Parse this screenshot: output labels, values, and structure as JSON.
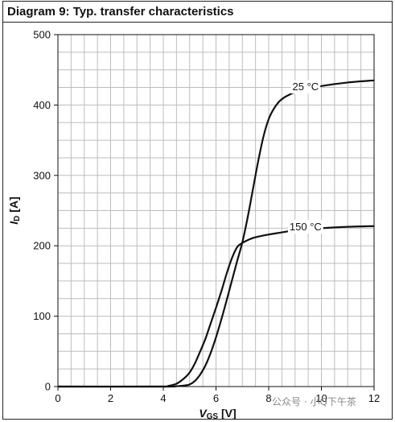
{
  "title": "Diagram 9: Typ. transfer characteristics",
  "watermark": "公众号 · 小Q下午茶",
  "chart_data": {
    "type": "line",
    "title": "Diagram 9: Typ. transfer characteristics",
    "xlabel": {
      "main": "V",
      "sub": "GS",
      "unit": " [V]"
    },
    "ylabel": {
      "main": "I",
      "sub": "D",
      "unit": " [A]"
    },
    "xlim": [
      0,
      12
    ],
    "ylim": [
      0,
      500
    ],
    "x_ticks": [
      0,
      2,
      4,
      6,
      8,
      10,
      12
    ],
    "y_ticks": [
      0,
      100,
      200,
      300,
      400,
      500
    ],
    "x_minor_step": 0.5,
    "y_minor_step": 25,
    "grid": true,
    "colors": {
      "line": "#111111",
      "grid": "#bdbdbd",
      "axis": "#111111"
    },
    "series": [
      {
        "name": "25 °C",
        "label_at": {
          "x": 9.4,
          "y": 426
        },
        "x": [
          0,
          4.0,
          4.5,
          4.8,
          5.0,
          5.2,
          5.4,
          5.6,
          5.8,
          6.0,
          6.2,
          6.4,
          6.6,
          6.8,
          7.0,
          7.2,
          7.4,
          7.6,
          7.8,
          8.0,
          8.2,
          8.4,
          8.6,
          8.8,
          9.0,
          9.5,
          10,
          11,
          12
        ],
        "values": [
          0,
          0,
          0.5,
          1.5,
          3,
          8,
          17,
          30,
          48,
          70,
          95,
          122,
          150,
          178,
          205,
          240,
          280,
          320,
          355,
          380,
          395,
          405,
          411,
          415,
          418,
          423,
          427,
          432,
          435
        ]
      },
      {
        "name": "150 °C",
        "label_at": {
          "x": 9.4,
          "y": 227
        },
        "x": [
          0,
          3.8,
          4.2,
          4.5,
          4.8,
          5.0,
          5.2,
          5.4,
          5.6,
          5.8,
          6.0,
          6.2,
          6.4,
          6.6,
          6.8,
          7.0,
          7.2,
          7.4,
          7.6,
          8.0,
          8.5,
          9.0,
          10,
          11,
          12
        ],
        "values": [
          0,
          0,
          1,
          4,
          12,
          20,
          33,
          50,
          68,
          90,
          112,
          135,
          160,
          182,
          198,
          204,
          208,
          211,
          213,
          216,
          219,
          222,
          225,
          227,
          228
        ]
      }
    ]
  }
}
